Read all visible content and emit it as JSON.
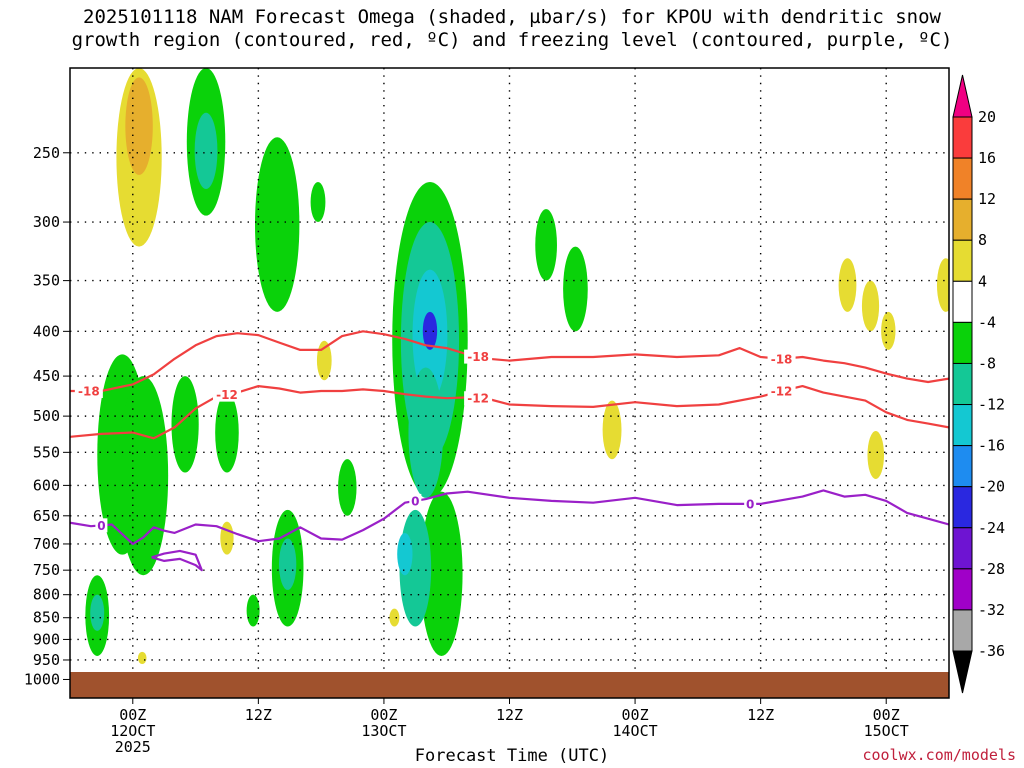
{
  "title": "2025101118 NAM Forecast Omega (shaded, µbar/s) for KPOU with dendritic snow\ngrowth region (contoured, red, ºC) and freezing level (contoured, purple, ºC)",
  "credit": "coolwx.com/models",
  "chart_data": {
    "type": "heatmap",
    "title": "2025101118 NAM Forecast Omega (shaded, µbar/s) for KPOU with dendritic snow growth region (contoured, red, ºC) and freezing level (contoured, purple, ºC)",
    "xlabel": "Forecast Time (UTC)",
    "x_range_hours": [
      -6,
      78
    ],
    "x_ticks": [
      {
        "hour": 0,
        "lines": [
          "00Z",
          "12OCT",
          "2025"
        ]
      },
      {
        "hour": 12,
        "lines": [
          "12Z"
        ]
      },
      {
        "hour": 24,
        "lines": [
          "00Z",
          "13OCT"
        ]
      },
      {
        "hour": 36,
        "lines": [
          "12Z"
        ]
      },
      {
        "hour": 48,
        "lines": [
          "00Z",
          "14OCT"
        ]
      },
      {
        "hour": 60,
        "lines": [
          "12Z"
        ]
      },
      {
        "hour": 72,
        "lines": [
          "00Z",
          "15OCT"
        ]
      }
    ],
    "y_axis": {
      "scale": "log",
      "range": [
        200,
        1050
      ],
      "inverted": true,
      "ticks": [
        250,
        300,
        350,
        400,
        450,
        500,
        550,
        600,
        650,
        700,
        750,
        800,
        850,
        900,
        950,
        1000
      ]
    },
    "grid": true,
    "colorbar": {
      "levels": [
        -36,
        -32,
        -28,
        -24,
        -20,
        -16,
        -12,
        -8,
        -4,
        4,
        8,
        12,
        16,
        20
      ],
      "labels": [
        "20",
        "16",
        "12",
        "8",
        "4",
        "-4",
        "-8",
        "-12",
        "-16",
        "-20",
        "-24",
        "-28",
        "-32",
        "-36"
      ],
      "colors": {
        "lt_-36": "#000000",
        "-36_-32": "#a8a8a8",
        "-32_-28": "#a000c8",
        "-28_-24": "#6e14d2",
        "-24_-20": "#2a28e0",
        "-20_-16": "#1e8cf0",
        "-16_-12": "#14c8d2",
        "-12_-8": "#14c896",
        "-8_-4": "#0ad20a",
        "-4_4": "#ffffff",
        "4_8": "#e6dc32",
        "8_12": "#e6af2d",
        "12_16": "#f08228",
        "16_20": "#fa3c3c",
        "gt_20": "#f00082"
      }
    },
    "omega_regions": [
      {
        "hour": 0.6,
        "p_top": 200,
        "p_bottom": 320,
        "value": 5
      },
      {
        "hour": 0.6,
        "p_top": 205,
        "p_bottom": 265,
        "value": 9
      },
      {
        "hour": 7.0,
        "p_top": 200,
        "p_bottom": 295,
        "value": -6
      },
      {
        "hour": 7.0,
        "p_top": 225,
        "p_bottom": 275,
        "value": -10
      },
      {
        "hour": 13.8,
        "p_top": 240,
        "p_bottom": 380,
        "value": -6
      },
      {
        "hour": 17.7,
        "p_top": 270,
        "p_bottom": 300,
        "value": -5
      },
      {
        "hour": 18.3,
        "p_top": 410,
        "p_bottom": 455,
        "value": 5
      },
      {
        "hour": -1.0,
        "p_top": 425,
        "p_bottom": 720,
        "value": -6
      },
      {
        "hour": 1.0,
        "p_top": 450,
        "p_bottom": 760,
        "value": -5
      },
      {
        "hour": 5.0,
        "p_top": 450,
        "p_bottom": 580,
        "value": -6
      },
      {
        "hour": 9.0,
        "p_top": 470,
        "p_bottom": 580,
        "value": -5
      },
      {
        "hour": 9.0,
        "p_top": 660,
        "p_bottom": 720,
        "value": 5
      },
      {
        "hour": 14.8,
        "p_top": 640,
        "p_bottom": 870,
        "value": -6
      },
      {
        "hour": 14.8,
        "p_top": 690,
        "p_bottom": 790,
        "value": -10
      },
      {
        "hour": -3.4,
        "p_top": 760,
        "p_bottom": 940,
        "value": -6
      },
      {
        "hour": -3.4,
        "p_top": 800,
        "p_bottom": 880,
        "value": -10
      },
      {
        "hour": 11.5,
        "p_top": 800,
        "p_bottom": 870,
        "value": -5
      },
      {
        "hour": 20.5,
        "p_top": 560,
        "p_bottom": 650,
        "value": -5
      },
      {
        "hour": 28.4,
        "p_top": 270,
        "p_bottom": 620,
        "value": -6
      },
      {
        "hour": 28.4,
        "p_top": 300,
        "p_bottom": 560,
        "value": -12
      },
      {
        "hour": 28.4,
        "p_top": 340,
        "p_bottom": 480,
        "value": -16
      },
      {
        "hour": 28.4,
        "p_top": 380,
        "p_bottom": 420,
        "value": -22
      },
      {
        "hour": 28.0,
        "p_top": 440,
        "p_bottom": 620,
        "value": -10
      },
      {
        "hour": 29.5,
        "p_top": 610,
        "p_bottom": 940,
        "value": -6
      },
      {
        "hour": 27.0,
        "p_top": 640,
        "p_bottom": 870,
        "value": -10
      },
      {
        "hour": 26.0,
        "p_top": 680,
        "p_bottom": 760,
        "value": -14
      },
      {
        "hour": 25.0,
        "p_top": 830,
        "p_bottom": 870,
        "value": 5
      },
      {
        "hour": 39.5,
        "p_top": 290,
        "p_bottom": 350,
        "value": -5
      },
      {
        "hour": 42.3,
        "p_top": 320,
        "p_bottom": 400,
        "value": -5
      },
      {
        "hour": 45.8,
        "p_top": 480,
        "p_bottom": 560,
        "value": 5
      },
      {
        "hour": 68.3,
        "p_top": 330,
        "p_bottom": 380,
        "value": 5
      },
      {
        "hour": 70.5,
        "p_top": 350,
        "p_bottom": 400,
        "value": 5
      },
      {
        "hour": 72.2,
        "p_top": 380,
        "p_bottom": 420,
        "value": 5
      },
      {
        "hour": 71.0,
        "p_top": 520,
        "p_bottom": 590,
        "value": 5
      },
      {
        "hour": 0.9,
        "p_top": 930,
        "p_bottom": 960,
        "value": 5
      },
      {
        "hour": 77.7,
        "p_top": 330,
        "p_bottom": 380,
        "value": 5
      }
    ],
    "series": [
      {
        "name": "-18",
        "color": "#f04040",
        "labels": [
          {
            "hour": -4.2,
            "text": "-18"
          },
          {
            "hour": 33.0,
            "text": "-18"
          },
          {
            "hour": 62.0,
            "text": "-18"
          }
        ],
        "x": [
          -6,
          -3,
          0,
          2,
          4,
          6,
          8,
          10,
          12,
          14,
          16,
          18,
          20,
          22,
          24,
          26,
          28,
          30,
          32,
          34,
          36,
          40,
          44,
          48,
          52,
          56,
          58,
          60,
          62,
          64,
          66,
          68,
          70,
          72,
          74,
          76,
          78
        ],
        "y": [
          468,
          468,
          460,
          448,
          430,
          415,
          405,
          402,
          404,
          412,
          420,
          420,
          405,
          400,
          403,
          408,
          415,
          418,
          425,
          430,
          432,
          428,
          428,
          425,
          428,
          426,
          418,
          428,
          430,
          428,
          432,
          435,
          440,
          447,
          453,
          457,
          453
        ]
      },
      {
        "name": "-12",
        "color": "#f04040",
        "labels": [
          {
            "hour": 9.0,
            "text": "-12"
          },
          {
            "hour": 33.0,
            "text": "-12"
          },
          {
            "hour": 62.0,
            "text": "-12"
          }
        ],
        "x": [
          -6,
          -3,
          0,
          2,
          4,
          6,
          8,
          10,
          12,
          14,
          16,
          18,
          20,
          22,
          24,
          26,
          28,
          30,
          32,
          34,
          36,
          40,
          44,
          48,
          52,
          56,
          60,
          62,
          64,
          66,
          68,
          70,
          72,
          74,
          76,
          78
        ],
        "y": [
          528,
          524,
          522,
          530,
          515,
          490,
          475,
          470,
          462,
          465,
          470,
          468,
          468,
          466,
          468,
          472,
          475,
          477,
          476,
          478,
          485,
          487,
          488,
          482,
          487,
          485,
          475,
          468,
          462,
          470,
          475,
          480,
          495,
          505,
          510,
          515
        ]
      },
      {
        "name": "0",
        "color": "#9a20c8",
        "labels": [
          {
            "hour": -3.0,
            "text": "0"
          },
          {
            "hour": 27.0,
            "text": "0"
          },
          {
            "hour": 59.0,
            "text": "0"
          }
        ],
        "x": [
          -6,
          -4,
          -2,
          0,
          1,
          2,
          3,
          4,
          6,
          8,
          10,
          12,
          14,
          16,
          18,
          20,
          22,
          24,
          26,
          28,
          30,
          32,
          36,
          40,
          44,
          48,
          52,
          56,
          60,
          64,
          66,
          68,
          70,
          72,
          74,
          76,
          78
        ],
        "y": [
          662,
          668,
          665,
          700,
          688,
          670,
          676,
          680,
          665,
          668,
          682,
          695,
          690,
          670,
          690,
          692,
          675,
          655,
          628,
          622,
          613,
          610,
          620,
          625,
          628,
          620,
          632,
          630,
          630,
          618,
          608,
          618,
          615,
          625,
          645,
          655,
          665
        ]
      },
      {
        "name": "0",
        "color": "#9a20c8",
        "labels": [],
        "x": [
          1.8,
          3.0,
          4.5,
          6.0,
          6.6,
          6.0,
          4.5,
          3.0,
          1.8
        ],
        "y": [
          725,
          718,
          713,
          720,
          750,
          740,
          728,
          732,
          725
        ]
      }
    ]
  }
}
